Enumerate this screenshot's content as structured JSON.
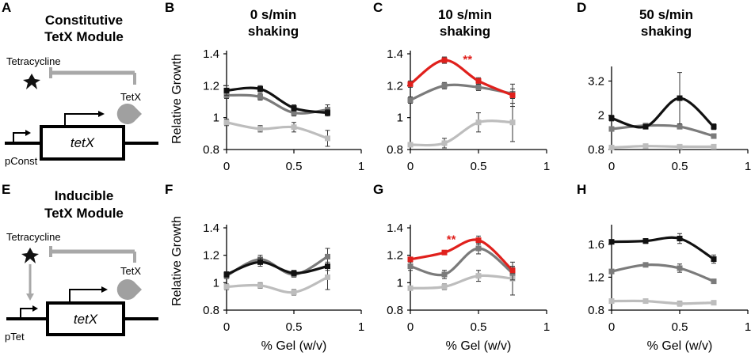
{
  "figure": {
    "panel_letters": {
      "A": "A",
      "B": "B",
      "C": "C",
      "D": "D",
      "E": "E",
      "F": "F",
      "G": "G",
      "H": "H"
    },
    "axis_label_y": "Relative Growth",
    "axis_label_x": "% Gel (w/v)",
    "colors": {
      "black": "#111111",
      "dark_gray": "#7b7b7b",
      "light_gray": "#bdbdbd",
      "red": "#e0201c"
    }
  },
  "schematic_a": {
    "title_line1": "Constitutive",
    "title_line2": "TetX Module",
    "inhibitor": "Tetracycline",
    "enzyme": "TetX",
    "promoter": "pConst",
    "gene": "tetX"
  },
  "schematic_e": {
    "title_line1": "Inducible",
    "title_line2": "TetX Module",
    "inhibitor": "Tetracycline",
    "enzyme": "TetX",
    "promoter": "pTet",
    "gene": "tetX"
  },
  "column_titles": {
    "b": {
      "line1": "0 s/min",
      "line2": "shaking"
    },
    "c": {
      "line1": "10 s/min",
      "line2": "shaking"
    },
    "d": {
      "line1": "50 s/min",
      "line2": "shaking"
    }
  },
  "chart_data": [
    {
      "panel": "B",
      "type": "line",
      "title": "0 s/min shaking",
      "ylabel": "Relative Growth",
      "xlabel": "",
      "xlim": [
        0,
        1
      ],
      "ylim": [
        0.8,
        1.4
      ],
      "yticks": [
        "0.8",
        "1",
        "1.2",
        "1.4"
      ],
      "xticks": [
        "0",
        "0.5",
        "1"
      ],
      "x": [
        0,
        0.25,
        0.5,
        0.75
      ],
      "series": [
        {
          "name": "black",
          "color": "#111111",
          "values": [
            1.17,
            1.18,
            1.06,
            1.03
          ],
          "err": [
            0.03,
            0.02,
            0.02,
            0.02
          ]
        },
        {
          "name": "dark gray",
          "color": "#7b7b7b",
          "values": [
            1.14,
            1.13,
            1.03,
            1.05
          ],
          "err": [
            0.02,
            0.02,
            0.02,
            0.03
          ]
        },
        {
          "name": "light gray",
          "color": "#bdbdbd",
          "values": [
            0.97,
            0.93,
            0.94,
            0.87
          ],
          "err": [
            0.02,
            0.02,
            0.03,
            0.05
          ]
        }
      ],
      "annotations": []
    },
    {
      "panel": "C",
      "type": "line",
      "title": "10 s/min shaking",
      "ylabel": "",
      "xlabel": "",
      "xlim": [
        0,
        1
      ],
      "ylim": [
        0.8,
        1.4
      ],
      "yticks": [
        "0.8",
        "1",
        "1.2",
        "1.4"
      ],
      "xticks": [
        "0",
        "0.5",
        "1"
      ],
      "x": [
        0,
        0.25,
        0.5,
        0.75
      ],
      "series": [
        {
          "name": "red",
          "color": "#e0201c",
          "values": [
            1.21,
            1.36,
            1.23,
            1.14
          ],
          "err": [
            0.02,
            0.02,
            0.02,
            0.07
          ]
        },
        {
          "name": "dark gray",
          "color": "#7b7b7b",
          "values": [
            1.11,
            1.2,
            1.19,
            1.15
          ],
          "err": [
            0.02,
            0.02,
            0.02,
            0.03
          ]
        },
        {
          "name": "light gray",
          "color": "#bdbdbd",
          "values": [
            0.83,
            0.84,
            0.97,
            0.97
          ],
          "err": [
            0.01,
            0.03,
            0.06,
            0.12
          ]
        }
      ],
      "annotations": [
        {
          "text": "**",
          "x": 0.42,
          "y": 1.36,
          "color": "#e0201c"
        }
      ]
    },
    {
      "panel": "D",
      "type": "line",
      "title": "50 s/min shaking",
      "ylabel": "",
      "xlabel": "",
      "xlim": [
        0,
        1
      ],
      "ylim": [
        0.8,
        3.6
      ],
      "yticks": [
        "0.8",
        "2",
        "3.2"
      ],
      "xticks": [
        "0",
        "0.5",
        "1"
      ],
      "x": [
        0,
        0.25,
        0.5,
        0.75
      ],
      "series": [
        {
          "name": "black",
          "color": "#111111",
          "values": [
            1.9,
            1.6,
            2.6,
            1.6
          ],
          "err": [
            0.1,
            0.05,
            0.9,
            0.1
          ]
        },
        {
          "name": "dark gray",
          "color": "#7b7b7b",
          "values": [
            1.52,
            1.64,
            1.6,
            1.27
          ],
          "err": [
            0.05,
            0.05,
            0.08,
            0.05
          ]
        },
        {
          "name": "light gray",
          "color": "#bdbdbd",
          "values": [
            0.87,
            0.92,
            0.9,
            0.9
          ],
          "err": [
            0.02,
            0.02,
            0.06,
            0.05
          ]
        }
      ],
      "annotations": []
    },
    {
      "panel": "F",
      "type": "line",
      "title": "",
      "ylabel": "Relative Growth",
      "xlabel": "% Gel (w/v)",
      "xlim": [
        0,
        1
      ],
      "ylim": [
        0.8,
        1.4
      ],
      "yticks": [
        "0.8",
        "1",
        "1.2",
        "1.4"
      ],
      "xticks": [
        "0",
        "0.5",
        "1"
      ],
      "x": [
        0,
        0.25,
        0.5,
        0.75
      ],
      "series": [
        {
          "name": "black",
          "color": "#111111",
          "values": [
            1.06,
            1.15,
            1.07,
            1.12
          ],
          "err": [
            0.02,
            0.03,
            0.02,
            0.03
          ]
        },
        {
          "name": "dark gray",
          "color": "#7b7b7b",
          "values": [
            1.05,
            1.17,
            1.06,
            1.19
          ],
          "err": [
            0.02,
            0.03,
            0.02,
            0.06
          ]
        },
        {
          "name": "light gray",
          "color": "#bdbdbd",
          "values": [
            0.97,
            0.98,
            0.93,
            1.04
          ],
          "err": [
            0.02,
            0.02,
            0.02,
            0.09
          ]
        }
      ],
      "annotations": []
    },
    {
      "panel": "G",
      "type": "line",
      "title": "",
      "ylabel": "",
      "xlabel": "% Gel (w/v)",
      "xlim": [
        0,
        1
      ],
      "ylim": [
        0.8,
        1.4
      ],
      "yticks": [
        "0.8",
        "1",
        "1.2",
        "1.4"
      ],
      "xticks": [
        "0",
        "0.5",
        "1"
      ],
      "x": [
        0,
        0.25,
        0.5,
        0.75
      ],
      "series": [
        {
          "name": "red",
          "color": "#e0201c",
          "values": [
            1.17,
            1.22,
            1.31,
            1.09
          ],
          "err": [
            0.01,
            0.01,
            0.03,
            0.02
          ]
        },
        {
          "name": "dark gray",
          "color": "#7b7b7b",
          "values": [
            1.12,
            1.06,
            1.25,
            1.07
          ],
          "err": [
            0.03,
            0.03,
            0.04,
            0.05
          ]
        },
        {
          "name": "light gray",
          "color": "#bdbdbd",
          "values": [
            0.96,
            0.97,
            1.05,
            1.03
          ],
          "err": [
            0.01,
            0.02,
            0.04,
            0.12
          ]
        }
      ],
      "annotations": [
        {
          "text": "**",
          "x": 0.3,
          "y": 1.31,
          "color": "#e0201c"
        }
      ]
    },
    {
      "panel": "H",
      "type": "line",
      "title": "",
      "ylabel": "",
      "xlabel": "% Gel (w/v)",
      "xlim": [
        0,
        1
      ],
      "ylim": [
        0.8,
        1.8
      ],
      "yticks": [
        "0.8",
        "1.2",
        "1.6"
      ],
      "xticks": [
        "0",
        "0.5",
        "1"
      ],
      "x": [
        0,
        0.25,
        0.5,
        0.75
      ],
      "series": [
        {
          "name": "black",
          "color": "#111111",
          "values": [
            1.63,
            1.64,
            1.67,
            1.42
          ],
          "err": [
            0.02,
            0.03,
            0.06,
            0.05
          ]
        },
        {
          "name": "dark gray",
          "color": "#7b7b7b",
          "values": [
            1.27,
            1.35,
            1.31,
            1.15
          ],
          "err": [
            0.02,
            0.02,
            0.05,
            0.02
          ]
        },
        {
          "name": "light gray",
          "color": "#bdbdbd",
          "values": [
            0.91,
            0.91,
            0.88,
            0.89
          ],
          "err": [
            0.01,
            0.01,
            0.03,
            0.01
          ]
        }
      ],
      "annotations": []
    }
  ]
}
